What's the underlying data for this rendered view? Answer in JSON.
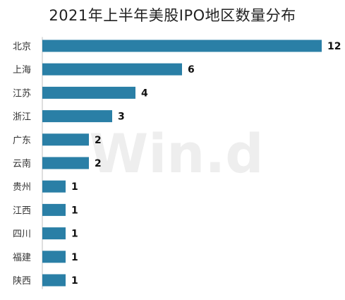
{
  "chart_data": {
    "type": "bar",
    "orientation": "horizontal",
    "title": "2021年上半年美股IPO地区数量分布",
    "categories": [
      "北京",
      "上海",
      "江苏",
      "浙江",
      "广东",
      "云南",
      "贵州",
      "江西",
      "四川",
      "福建",
      "陕西"
    ],
    "values": [
      12,
      6,
      4,
      3,
      2,
      2,
      1,
      1,
      1,
      1,
      1
    ],
    "xlim": [
      0,
      12
    ],
    "grid": false,
    "legend": "none",
    "bar_color": "#2a7fa6",
    "data_labels": true
  },
  "watermark": "Win.d"
}
